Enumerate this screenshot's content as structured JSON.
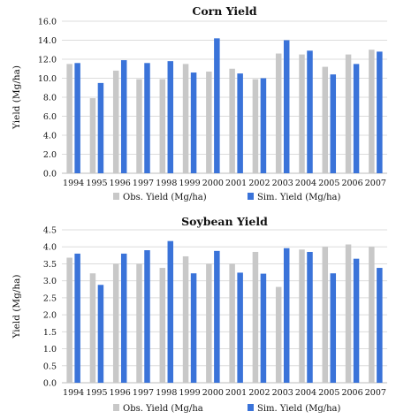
{
  "colors": {
    "obs": "#c8c8c8",
    "sim": "#3a73d9"
  },
  "chart_data": [
    {
      "type": "bar",
      "title": "Corn Yield",
      "ylabel": "Yield (Mg/ha)",
      "xlabel": "",
      "ylim": [
        0,
        16
      ],
      "yticks": [
        "0.0",
        "2.0",
        "4.0",
        "6.0",
        "8.0",
        "10.0",
        "12.0",
        "14.0",
        "16.0"
      ],
      "grid": true,
      "legend_position": "bottom",
      "categories": [
        "1994",
        "1995",
        "1996",
        "1997",
        "1998",
        "1999",
        "2000",
        "2001",
        "2002",
        "2003",
        "2004",
        "2005",
        "2006",
        "2007"
      ],
      "series": [
        {
          "name": "Obs. Yield (Mg/ha)",
          "values": [
            11.5,
            7.9,
            10.8,
            9.9,
            9.9,
            11.5,
            10.7,
            11.0,
            9.9,
            12.6,
            12.5,
            11.2,
            12.5,
            13.0
          ]
        },
        {
          "name": "Sim. Yield (Mg/ha)",
          "values": [
            11.6,
            9.5,
            11.9,
            11.6,
            11.8,
            10.6,
            14.2,
            10.5,
            10.0,
            14.0,
            12.9,
            10.4,
            11.5,
            12.8
          ]
        }
      ]
    },
    {
      "type": "bar",
      "title": "Soybean Yield",
      "ylabel": "Yield (Mg/ha)",
      "xlabel": "",
      "ylim": [
        0,
        4.5
      ],
      "yticks": [
        "0.0",
        "0.5",
        "1.0",
        "1.5",
        "2.0",
        "2.5",
        "3.0",
        "3.5",
        "4.0",
        "4.5"
      ],
      "grid": true,
      "legend_position": "bottom",
      "categories": [
        "1994",
        "1995",
        "1996",
        "1997",
        "1998",
        "1999",
        "2000",
        "2001",
        "2002",
        "2003",
        "2004",
        "2005",
        "2006",
        "2007"
      ],
      "series": [
        {
          "name": "Obs. Yield (Mg/ha",
          "values": [
            3.68,
            3.22,
            3.5,
            3.5,
            3.38,
            3.72,
            3.5,
            3.5,
            3.85,
            2.82,
            3.92,
            4.0,
            4.07,
            4.0
          ]
        },
        {
          "name": "Sim. Yield (Mg/ha)",
          "values": [
            3.8,
            2.88,
            3.8,
            3.9,
            4.17,
            3.22,
            3.88,
            3.24,
            3.21,
            3.96,
            3.85,
            3.22,
            3.65,
            3.38
          ]
        }
      ]
    }
  ]
}
